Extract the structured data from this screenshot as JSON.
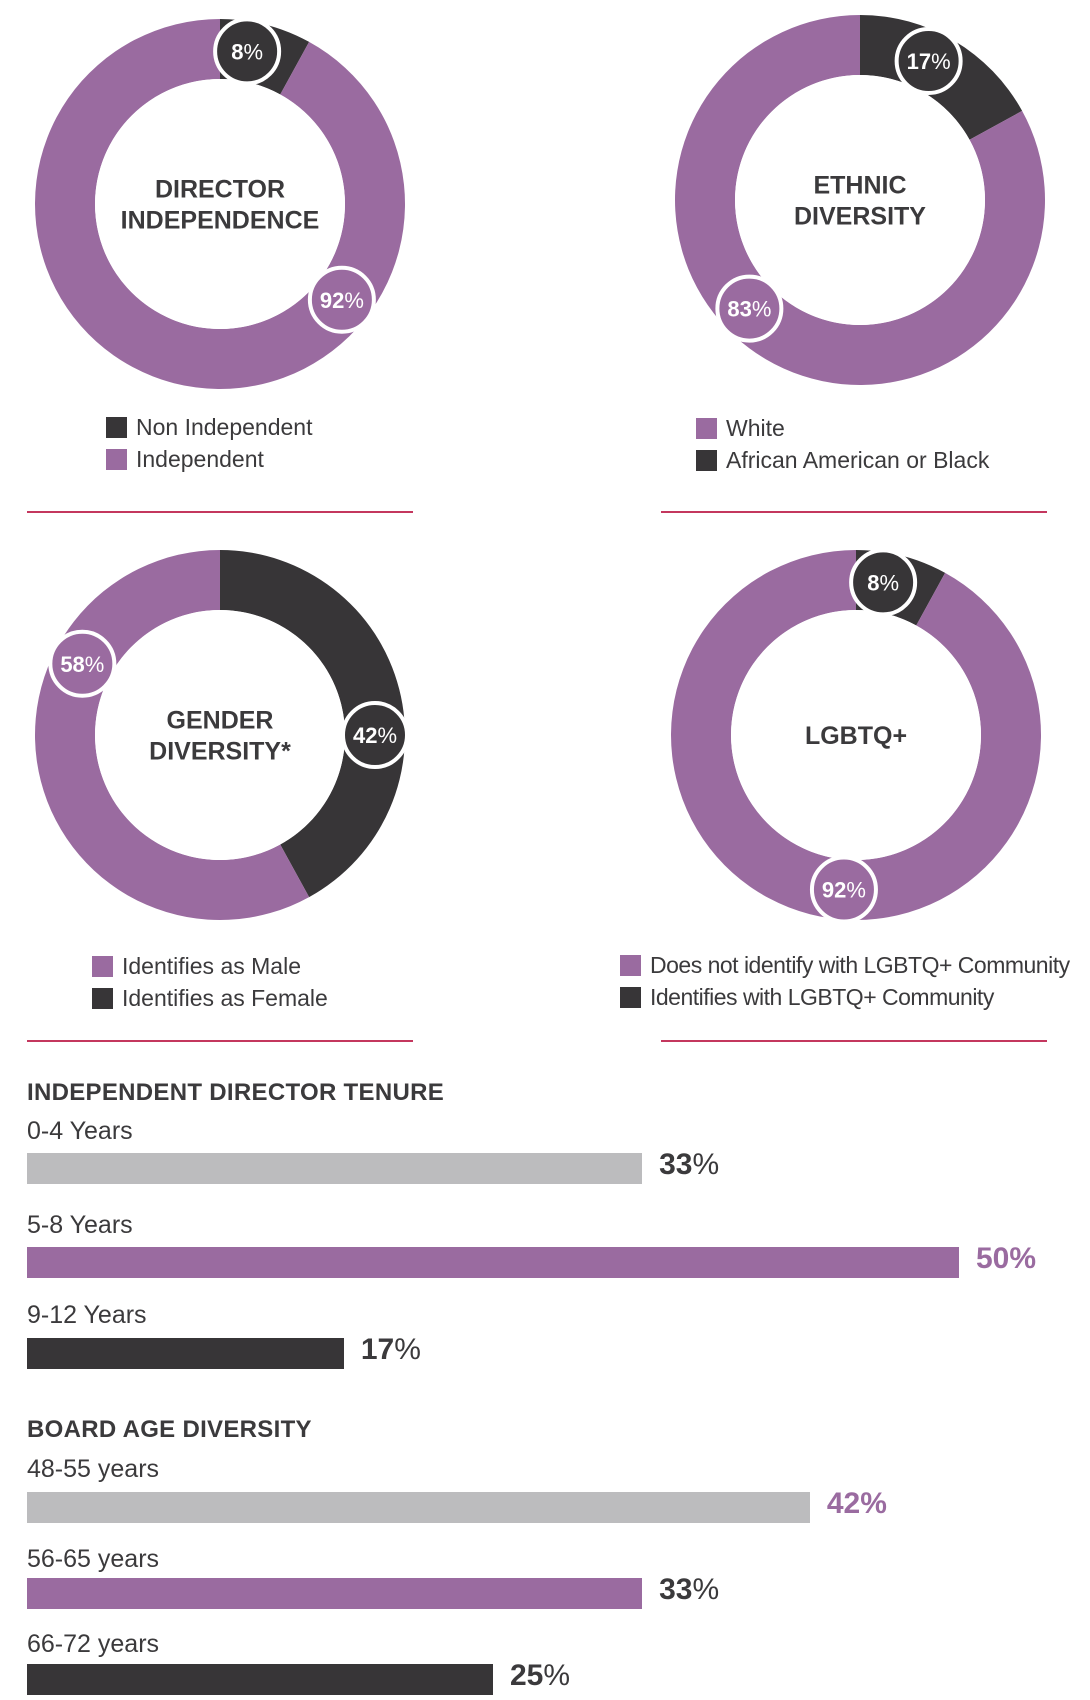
{
  "colors": {
    "purple": "#9a6ba0",
    "dark": "#373537",
    "gray": "#bcbcbe",
    "accent_line": "#c4375e",
    "text": "#3b3a3c"
  },
  "chart_data": [
    {
      "type": "pie",
      "title": "DIRECTOR INDEPENDENCE",
      "title_lines": [
        "DIRECTOR",
        "INDEPENDENCE"
      ],
      "slices": [
        {
          "label": "Non Independent",
          "value": 8,
          "color": "dark"
        },
        {
          "label": "Independent",
          "value": 92,
          "color": "purple"
        }
      ],
      "legend": [
        {
          "label": "Non Independent",
          "color": "dark"
        },
        {
          "label": "Independent",
          "color": "purple"
        }
      ]
    },
    {
      "type": "pie",
      "title": "ETHNIC DIVERSITY",
      "title_lines": [
        "ETHNIC",
        "DIVERSITY"
      ],
      "slices": [
        {
          "label": "African American or Black",
          "value": 17,
          "color": "dark"
        },
        {
          "label": "White",
          "value": 83,
          "color": "purple"
        }
      ],
      "legend": [
        {
          "label": "White",
          "color": "purple"
        },
        {
          "label": "African American or Black",
          "color": "dark"
        }
      ]
    },
    {
      "type": "pie",
      "title": "GENDER DIVERSITY*",
      "title_lines": [
        "GENDER",
        "DIVERSITY*"
      ],
      "slices": [
        {
          "label": "Identifies as Female",
          "value": 42,
          "color": "dark"
        },
        {
          "label": "Identifies as Male",
          "value": 58,
          "color": "purple"
        }
      ],
      "legend": [
        {
          "label": "Identifies as Male",
          "color": "purple"
        },
        {
          "label": "Identifies as Female",
          "color": "dark"
        }
      ]
    },
    {
      "type": "pie",
      "title": "LGBTQ+",
      "title_lines": [
        "LGBTQ+"
      ],
      "slices": [
        {
          "label": "Identifies with LGBTQ+ Community",
          "value": 8,
          "color": "dark"
        },
        {
          "label": "Does not identify with LGBTQ+ Community",
          "value": 92,
          "color": "purple"
        }
      ],
      "legend": [
        {
          "label": "Does not identify with LGBTQ+ Community",
          "color": "purple"
        },
        {
          "label": "Identifies with LGBTQ+ Community",
          "color": "dark"
        }
      ]
    },
    {
      "type": "bar",
      "orientation": "horizontal",
      "title": "INDEPENDENT DIRECTOR TENURE",
      "categories": [
        "0-4 Years",
        "5-8 Years",
        "9-12 Years"
      ],
      "values": [
        33,
        50,
        17
      ],
      "bar_colors": [
        "gray",
        "purple",
        "dark"
      ],
      "value_colors": [
        "text",
        "purple",
        "text"
      ],
      "unit": "%",
      "xlim": [
        0,
        50
      ]
    },
    {
      "type": "bar",
      "orientation": "horizontal",
      "title": "BOARD AGE DIVERSITY",
      "categories": [
        "48-55 years",
        "56-65 years",
        "66-72 years"
      ],
      "values": [
        42,
        33,
        25
      ],
      "bar_colors": [
        "gray",
        "purple",
        "dark"
      ],
      "value_colors": [
        "purple",
        "text",
        "text"
      ],
      "unit": "%",
      "xlim": [
        0,
        50
      ]
    }
  ]
}
